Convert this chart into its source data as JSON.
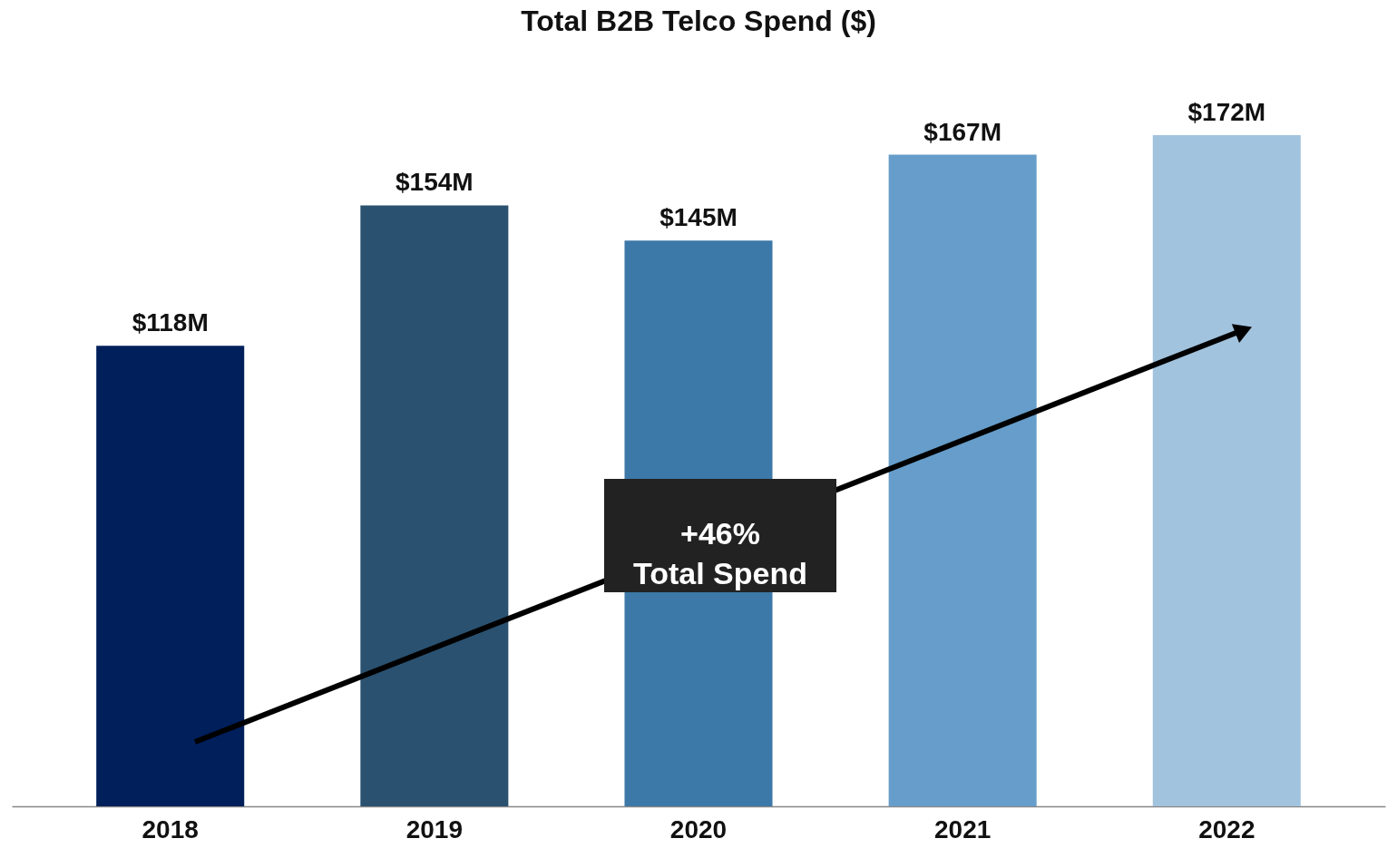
{
  "chart_data": {
    "type": "bar",
    "title": "Total B2B Telco Spend ($)",
    "categories": [
      "2018",
      "2019",
      "2020",
      "2021",
      "2022"
    ],
    "values": [
      118,
      154,
      145,
      167,
      172
    ],
    "colors": [
      "#001f5b",
      "#2a5170",
      "#3c78a8",
      "#669dca",
      "#a2c3de"
    ],
    "value_labels": [
      "$118M",
      "$154M",
      "$145M",
      "$167M",
      "$172M"
    ],
    "tick_labels": "x",
    "grid": false,
    "annotations": [
      "+46%\nTotal Spend"
    ]
  }
}
